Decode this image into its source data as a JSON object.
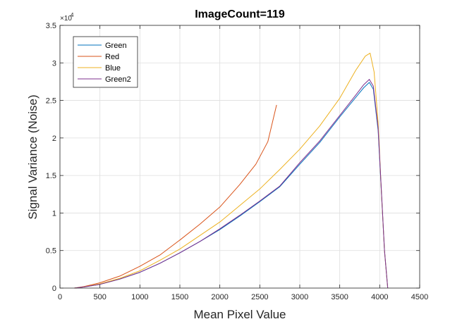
{
  "chart_data": {
    "type": "line",
    "title": "ImageCount=119",
    "xlabel": "Mean Pixel Value",
    "ylabel": "Signal Variance (Noise)",
    "xlim": [
      0,
      4500
    ],
    "ylim": [
      0,
      35000
    ],
    "y_exponent_base": "×10",
    "y_exponent_power": "4",
    "xticks": [
      0,
      500,
      1000,
      1500,
      2000,
      2500,
      3000,
      3500,
      4000,
      4500
    ],
    "yticks": [
      0,
      5000,
      10000,
      15000,
      20000,
      25000,
      30000,
      35000
    ],
    "ytick_labels": [
      "0",
      "0.5",
      "1",
      "1.5",
      "2",
      "2.5",
      "3",
      "3.5"
    ],
    "grid": true,
    "legend_position": "top-left",
    "series": [
      {
        "name": "Green",
        "color": "#0072BD",
        "x": [
          180,
          300,
          500,
          750,
          1000,
          1250,
          1500,
          1750,
          2000,
          2250,
          2500,
          2750,
          3000,
          3250,
          3500,
          3700,
          3800,
          3870,
          3920,
          3980,
          4020,
          4060,
          4100
        ],
        "y": [
          0,
          150,
          500,
          1200,
          2100,
          3300,
          4700,
          6200,
          7800,
          9600,
          11500,
          13500,
          16500,
          19400,
          22800,
          25400,
          26700,
          27400,
          26500,
          21000,
          13000,
          5000,
          0
        ]
      },
      {
        "name": "Red",
        "color": "#D95319",
        "x": [
          180,
          300,
          500,
          750,
          1000,
          1250,
          1500,
          1750,
          2000,
          2250,
          2450,
          2600,
          2710
        ],
        "y": [
          0,
          200,
          700,
          1600,
          2900,
          4400,
          6400,
          8500,
          10800,
          13800,
          16500,
          19500,
          24400
        ]
      },
      {
        "name": "Blue",
        "color": "#EDB120",
        "x": [
          180,
          300,
          500,
          750,
          1000,
          1250,
          1500,
          1750,
          2000,
          2250,
          2500,
          2750,
          3000,
          3250,
          3500,
          3700,
          3820,
          3880,
          3930,
          3980,
          4020,
          4060,
          4100
        ],
        "y": [
          0,
          150,
          550,
          1300,
          2300,
          3700,
          5200,
          7000,
          8800,
          11000,
          13200,
          15800,
          18500,
          21600,
          25300,
          29000,
          30900,
          31300,
          28800,
          22000,
          13000,
          5000,
          0
        ]
      },
      {
        "name": "Green2",
        "color": "#7E2F8E",
        "x": [
          180,
          300,
          500,
          750,
          1000,
          1250,
          1500,
          1750,
          2000,
          2250,
          2500,
          2750,
          3000,
          3250,
          3500,
          3700,
          3800,
          3870,
          3920,
          3980,
          4020,
          4060,
          4100
        ],
        "y": [
          0,
          150,
          500,
          1200,
          2100,
          3300,
          4700,
          6200,
          7900,
          9700,
          11600,
          13600,
          16700,
          19600,
          23000,
          25700,
          27100,
          27800,
          26900,
          21300,
          13200,
          5000,
          0
        ]
      }
    ]
  }
}
